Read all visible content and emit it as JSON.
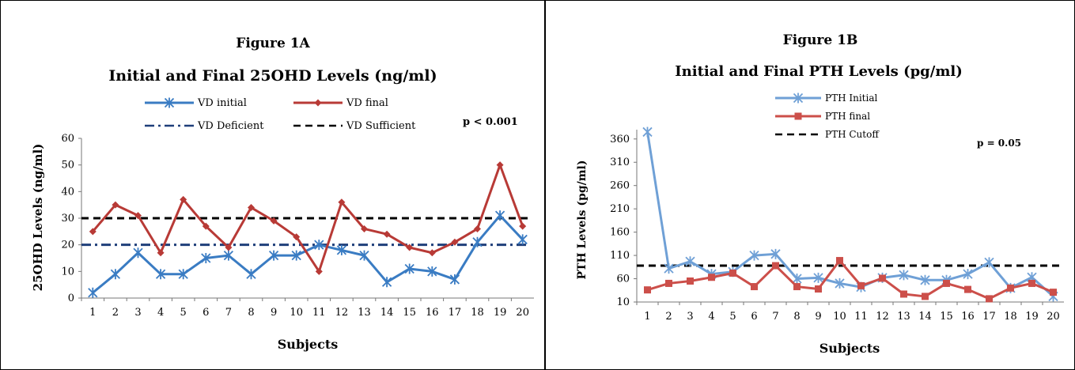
{
  "chart_data": [
    {
      "type": "line",
      "figure_label": "Figure 1A",
      "title": "Initial and Final 25OHD Levels (ng/ml)",
      "xlabel": "Subjects",
      "ylabel": "25OHD Levels (ng/ml)",
      "categories": [
        "1",
        "2",
        "3",
        "4",
        "5",
        "6",
        "7",
        "8",
        "9",
        "10",
        "11",
        "12",
        "13",
        "14",
        "15",
        "16",
        "17",
        "18",
        "19",
        "20"
      ],
      "ylim": [
        0,
        60
      ],
      "yticks": [
        0,
        10,
        20,
        30,
        40,
        50,
        60
      ],
      "annotation": "p < 0.001",
      "series": [
        {
          "name": "VD initial",
          "color": "#3a7cc3",
          "marker": "star",
          "values": [
            2,
            9,
            17,
            9,
            9,
            15,
            16,
            9,
            16,
            16,
            20,
            18,
            16,
            6,
            11,
            10,
            7,
            21,
            31,
            22
          ]
        },
        {
          "name": "VD final",
          "color": "#b83a36",
          "marker": "diamond",
          "values": [
            25,
            35,
            31,
            17,
            37,
            27,
            19,
            34,
            29,
            23,
            10,
            36,
            26,
            24,
            19,
            17,
            21,
            26,
            50,
            27
          ]
        }
      ],
      "reference_lines": [
        {
          "name": "VD Deficient",
          "value": 20,
          "color": "#1f3f7a",
          "style": "dash-dot"
        },
        {
          "name": "VD Sufficient",
          "value": 30,
          "color": "#000000",
          "style": "dash"
        }
      ],
      "legend_position": "top"
    },
    {
      "type": "line",
      "figure_label": "Figure 1B",
      "title": "Initial and Final PTH Levels (pg/ml)",
      "xlabel": "Subjects",
      "ylabel": "PTH Levels (pg/ml)",
      "categories": [
        "1",
        "2",
        "3",
        "4",
        "5",
        "6",
        "7",
        "8",
        "9",
        "10",
        "11",
        "12",
        "13",
        "14",
        "15",
        "16",
        "17",
        "18",
        "19",
        "20"
      ],
      "ylim": [
        10,
        380
      ],
      "yticks": [
        10,
        60,
        110,
        160,
        210,
        260,
        310,
        360
      ],
      "annotation": "p  = 0.05",
      "series": [
        {
          "name": "PTH Initial",
          "color": "#6fa0d6",
          "marker": "star",
          "values": [
            375,
            82,
            97,
            70,
            75,
            110,
            113,
            60,
            62,
            50,
            42,
            62,
            68,
            57,
            57,
            70,
            95,
            40,
            63,
            22
          ]
        },
        {
          "name": "PTH final",
          "color": "#cc4f4a",
          "marker": "square",
          "values": [
            36,
            50,
            55,
            63,
            72,
            43,
            88,
            43,
            38,
            99,
            45,
            61,
            27,
            22,
            50,
            37,
            17,
            40,
            50,
            31
          ]
        }
      ],
      "reference_lines": [
        {
          "name": "PTH Cutoff",
          "value": 88,
          "color": "#000000",
          "style": "dash"
        }
      ],
      "legend_position": "top"
    }
  ]
}
